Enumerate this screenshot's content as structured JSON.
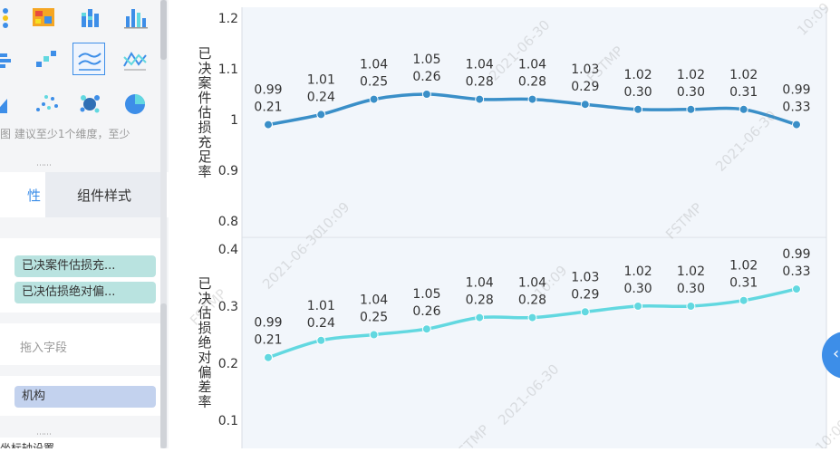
{
  "sidebar": {
    "chart_type_icons": [
      "color-dots-icon",
      "heatmap-icon",
      "stacked-bar-icon",
      "bar-chart-icon",
      "horizontal-bar-icon",
      "step-bar-icon",
      "multi-line-chart-icon",
      "intersect-line-icon",
      "area-chart-icon",
      "scatter-chart-icon",
      "bubble-chart-icon",
      "pie-chart-icon"
    ],
    "selected_icon": "multi-line-chart-icon",
    "hint": "图 建议至少1个维度，至少",
    "tabs": {
      "attributes_partial": "性",
      "style": "组件样式"
    },
    "measure_fields": [
      "已决案件估损充...",
      "已决估损绝对偏..."
    ],
    "drop_placeholder": "拖入字段",
    "dimension_field": "机构",
    "bottom_partial": "坐标轴设置"
  },
  "colors": {
    "accent": "#3d8ee8",
    "series1": "#3a8fc8",
    "series2": "#62d8e0"
  },
  "watermark": {
    "date": "2021-06-30",
    "time": "10:09",
    "code": "FSTMP"
  },
  "chart_data": [
    {
      "type": "line",
      "ylabel": "已决案件估损充足率",
      "ylim": [
        0.8,
        1.2
      ],
      "yticks": [
        "0.8",
        "0.9",
        "1",
        "1.1",
        "1.2"
      ],
      "ytick_values": [
        0.8,
        0.9,
        1.0,
        1.1,
        1.2
      ],
      "series": [
        {
          "values": [
            0.99,
            1.01,
            1.04,
            1.05,
            1.04,
            1.04,
            1.03,
            1.02,
            1.02,
            1.02,
            0.99
          ]
        }
      ],
      "labels_top": [
        "0.99",
        "1.01",
        "1.04",
        "1.05",
        "1.04",
        "1.04",
        "1.03",
        "1.02",
        "1.02",
        "1.02",
        "0.99"
      ],
      "labels_bottom": [
        "0.21",
        "0.24",
        "0.25",
        "0.26",
        "0.28",
        "0.28",
        "0.29",
        "0.30",
        "0.30",
        "0.31",
        "0.33"
      ]
    },
    {
      "type": "line",
      "ylabel": "已决估损绝对偏差率",
      "ylim": [
        0,
        0.4
      ],
      "yticks": [
        "0.1",
        "0.2",
        "0.3",
        "0.4"
      ],
      "ytick_values": [
        0.1,
        0.2,
        0.3,
        0.4
      ],
      "series": [
        {
          "values": [
            0.21,
            0.24,
            0.25,
            0.26,
            0.28,
            0.28,
            0.29,
            0.3,
            0.3,
            0.31,
            0.33
          ]
        }
      ],
      "labels_top": [
        "0.99",
        "1.01",
        "1.04",
        "1.05",
        "1.04",
        "1.04",
        "1.03",
        "1.02",
        "1.02",
        "1.02",
        "0.99"
      ],
      "labels_bottom": [
        "0.21",
        "0.24",
        "0.25",
        "0.26",
        "0.28",
        "0.28",
        "0.29",
        "0.30",
        "0.30",
        "0.31",
        "0.33"
      ]
    }
  ]
}
